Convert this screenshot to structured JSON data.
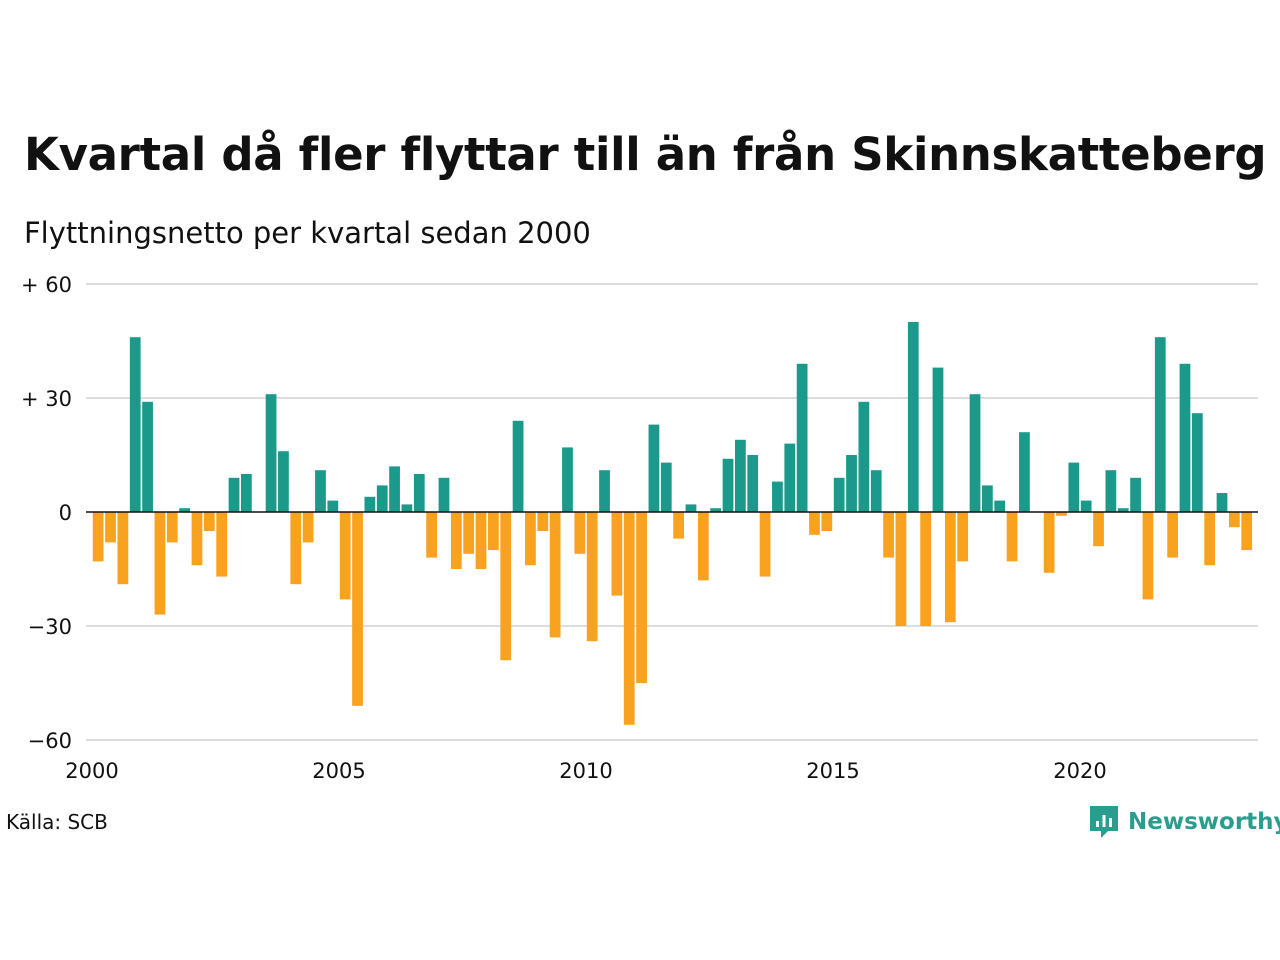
{
  "chart_data": {
    "type": "bar",
    "title": "Kvartal då fler flyttar till än från Skinnskatteberg",
    "subtitle": "Flyttningsnetto per kvartal sedan 2000",
    "xlabel": "",
    "ylabel": "",
    "ylim": [
      -60,
      60
    ],
    "y_ticks": [
      60,
      30,
      0,
      -30,
      -60
    ],
    "y_tick_labels": [
      "+ 60",
      "+ 30",
      "0",
      "−30",
      "−60"
    ],
    "x_ticks": [
      2000,
      2005,
      2010,
      2015,
      2020
    ],
    "x_tick_labels": [
      "2000",
      "2005",
      "2010",
      "2015",
      "2020"
    ],
    "x_start": 2000,
    "periods_per_year": 4,
    "grid": true,
    "colors": {
      "positive": "#1b998b",
      "negative": "#f8a21f",
      "grid": "#dddddd",
      "axis": "#111111"
    },
    "values": [
      -13,
      -8,
      -19,
      46,
      29,
      -27,
      -8,
      1,
      -14,
      -5,
      -17,
      9,
      10,
      0,
      31,
      16,
      -19,
      -8,
      11,
      3,
      -23,
      -51,
      4,
      7,
      12,
      2,
      10,
      -12,
      9,
      -15,
      -11,
      -15,
      -10,
      -39,
      24,
      -14,
      -5,
      -33,
      17,
      -11,
      -34,
      11,
      -22,
      -56,
      -45,
      23,
      13,
      -7,
      2,
      -18,
      1,
      14,
      19,
      15,
      -17,
      8,
      18,
      39,
      -6,
      -5,
      9,
      15,
      29,
      11,
      -12,
      -30,
      50,
      -30,
      38,
      -29,
      -13,
      31,
      7,
      3,
      -13,
      21,
      0,
      -16,
      -1,
      13,
      3,
      -9,
      11,
      1,
      9,
      -23,
      46,
      -12,
      39,
      26,
      -14,
      5,
      -4,
      -10
    ]
  },
  "footer": {
    "source": "Källa: SCB",
    "brand": "Newsworthy",
    "brand_icon": "newsworthy-logo-icon"
  }
}
